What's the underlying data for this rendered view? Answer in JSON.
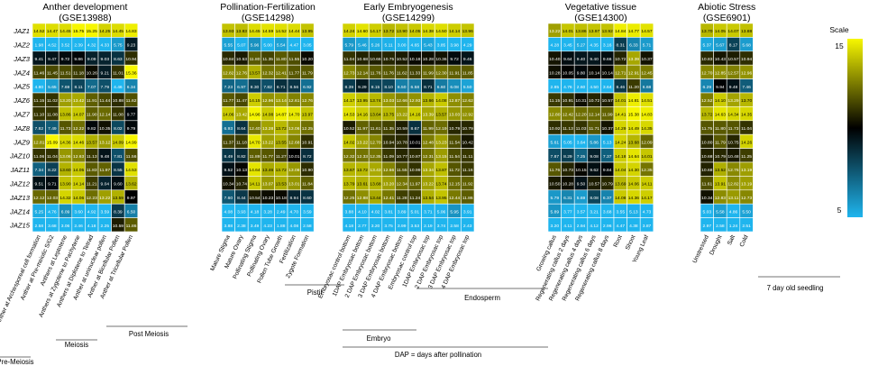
{
  "chart_data": {
    "type": "heatmap",
    "genes": [
      "JAZ1",
      "JAZ2",
      "JAZ3",
      "JAZ4",
      "JAZ5",
      "JAZ6",
      "JAZ7",
      "JAZ8",
      "JAZ9",
      "JAZ10",
      "JAZ11",
      "JAZ12",
      "JAZ13",
      "JAZ14",
      "JAZ15"
    ],
    "scale": {
      "label": "Scale",
      "min": 5,
      "max": 15,
      "min_label": "5",
      "max_label": "15",
      "colors": [
        "#1fb5ee",
        "#000000",
        "#f7f700"
      ]
    },
    "panels": [
      {
        "title": "Anther development",
        "subtitle": "(GSE13988)",
        "columns": [
          "Anther at Archesporeal cell formation",
          "Anther at Pre-meiotic S/G2",
          "Anthers at Leptotene",
          "Anthers at Zygotene to Pachytene",
          "Anthers at Diplotene to Tetrad",
          "Anther at uninuclear pollen",
          "Anther at Bicellular Pollen",
          "Anther at Tricellular Pollen"
        ],
        "values": [
          [
            14.52,
            14.47,
            14.45,
            15.75,
            15.25,
            14.25,
            14.45,
            14.83
          ],
          [
            1.98,
            4.52,
            3.52,
            2.39,
            4.32,
            4.33,
            5.75,
            9.23
          ],
          [
            9.41,
            9.47,
            9.72,
            9.86,
            9.09,
            9.03,
            8.63,
            10.94
          ],
          [
            11.46,
            11.45,
            11.51,
            11.18,
            10.26,
            9.21,
            11.01,
            15.36
          ],
          [
            4.8,
            5.65,
            7.69,
            8.11,
            7.07,
            7.79,
            4.46,
            6.34
          ],
          [
            11.15,
            11.02,
            13.2,
            13.42,
            11.91,
            11.44,
            10.88,
            11.62
          ],
          [
            11.1,
            11.08,
            13.86,
            14.07,
            11.9,
            12.14,
            11.08,
            9.77
          ],
          [
            7.82,
            7.49,
            11.73,
            12.22,
            9.82,
            10.35,
            8.02,
            9.79
          ],
          [
            12.81,
            15.09,
            14.36,
            14.46,
            13.57,
            13.12,
            14.09,
            14.99
          ],
          [
            11.06,
            11.04,
            13.06,
            12.63,
            11.13,
            9.48,
            7.81,
            11.56
          ],
          [
            7.34,
            8.22,
            13.6,
            14.05,
            11.83,
            11.97,
            8.55,
            14.53
          ],
          [
            9.51,
            9.71,
            13.9,
            14.14,
            11.21,
            9.04,
            9.6,
            13.62
          ],
          [
            12.12,
            12.03,
            14.32,
            14.06,
            12.23,
            13.22,
            13.59,
            9.97
          ],
          [
            5.25,
            4.76,
            6.09,
            3.6,
            4.92,
            3.59,
            8.39,
            6.5
          ],
          [
            2.58,
            3.68,
            3.06,
            2.46,
            4.18,
            2.25,
            10.59,
            11.86
          ]
        ],
        "groups": [
          {
            "label": "Pre-Meiosis"
          },
          {
            "label": "Meiosis"
          },
          {
            "label": "Post Meiosis"
          }
        ]
      },
      {
        "title": "Pollination-Fertilization",
        "subtitle": "(GSE14298)",
        "columns": [
          "Mature Stigma",
          "Mature Ovary",
          "Pollinating Stigma",
          "Pollinating Ovary",
          "Pollen Tube Growth",
          "Fertilization",
          "Zygote Formation"
        ],
        "values": [
          [
            13.93,
            13.83,
            14.45,
            14.59,
            14.52,
            14.44,
            13.95
          ],
          [
            5.55,
            5.07,
            5.96,
            5.0,
            5.54,
            4.47,
            3.05
          ],
          [
            10.84,
            10.53,
            11.8,
            11.35,
            11.8,
            11.55,
            10.2
          ],
          [
            12.82,
            12.76,
            13.57,
            12.32,
            12.41,
            11.77,
            11.79
          ],
          [
            7.23,
            6.97,
            8.3,
            7.82,
            8.71,
            8.56,
            6.92
          ],
          [
            11.77,
            11.47,
            14.15,
            12.96,
            13.14,
            12.61,
            12.76
          ],
          [
            14.06,
            13.42,
            14.96,
            14.08,
            14.87,
            14.7,
            13.97
          ],
          [
            6.93,
            8.64,
            12.4,
            13.28,
            13.72,
            13.06,
            12.25
          ],
          [
            11.37,
            11.18,
            14.7,
            13.22,
            13.55,
            12.68,
            10.91
          ],
          [
            8.49,
            8.82,
            11.89,
            11.77,
            11.27,
            10.01,
            8.72
          ],
          [
            9.52,
            10.13,
            14.64,
            13.46,
            13.72,
            13.08,
            10.9
          ],
          [
            10.34,
            10.74,
            14.11,
            13.07,
            13.53,
            13.01,
            11.84
          ],
          [
            7.6,
            8.44,
            10.54,
            10.23,
            10.18,
            8.94,
            8.6
          ],
          [
            4.08,
            3.93,
            4.18,
            3.28,
            2.49,
            4.7,
            3.59
          ],
          [
            3.88,
            2.38,
            3.49,
            4.23,
            1.88,
            4.08,
            2.58
          ]
        ],
        "groups": [
          {
            "label": "Pistil"
          }
        ]
      },
      {
        "title": "Early Embryogenesis",
        "subtitle": "(GSE14299)",
        "columns": [
          "Embryosac control bottom",
          "1DAP Embryosac bottom",
          "2 DAP Embryosac bottom",
          "3 DAP Embryosac bottom",
          "4 DAP Embryosac bottom",
          "Embryosac control top",
          "1DAP Embryosac top",
          "2 DAP Embryosac top",
          "3 DAP Embryosac top",
          "4 DAP Embryosac top"
        ],
        "values": [
          [
            14.24,
            14.6,
            14.17,
            13.72,
            13.9,
            14.05,
            14.38,
            14.5,
            14.14,
            13.96
          ],
          [
            5.79,
            5.46,
            5.26,
            5.11,
            3.0,
            4.65,
            5.43,
            3.85,
            3.98,
            4.29
          ],
          [
            11.04,
            10.68,
            10.66,
            10.75,
            10.52,
            10.18,
            10.28,
            10.36,
            9.72,
            9.46
          ],
          [
            12.73,
            12.14,
            11.76,
            11.76,
            11.62,
            11.33,
            11.99,
            12.3,
            11.91,
            11.85
          ],
          [
            8.39,
            9.29,
            8.15,
            8.1,
            6.5,
            6.58,
            8.71,
            6.6,
            6.08,
            5.5
          ],
          [
            14.17,
            13.95,
            13.74,
            13.03,
            12.66,
            12.93,
            13.66,
            14.08,
            12.87,
            12.62
          ],
          [
            14.53,
            14.16,
            13.64,
            13.75,
            13.22,
            14.16,
            13.39,
            13.57,
            13.03,
            12.92
          ],
          [
            10.52,
            11.97,
            11.61,
            11.35,
            10.59,
            8.67,
            11.99,
            12.19,
            10.79,
            10.79
          ],
          [
            14.02,
            13.22,
            12.7,
            10.94,
            10.78,
            10.01,
            12.48,
            13.23,
            11.54,
            10.42
          ],
          [
            12.32,
            12.33,
            12.35,
            11.09,
            10.77,
            10.87,
            12.31,
            13.15,
            11.54,
            11.11
          ],
          [
            13.67,
            13.72,
            13.43,
            12.66,
            11.55,
            10.99,
            13.34,
            13.87,
            11.72,
            11.16
          ],
          [
            13.79,
            13.61,
            13.68,
            13.2,
            12.34,
            11.97,
            13.22,
            13.74,
            12.15,
            11.92
          ],
          [
            12.25,
            12.88,
            13.44,
            12.41,
            11.28,
            11.24,
            13.54,
            13.95,
            12.44,
            11.86
          ],
          [
            3.88,
            4.1,
            4.02,
            3.81,
            3.89,
            5.01,
            3.71,
            5.06,
            5.95,
            3.91
          ],
          [
            4.18,
            2.77,
            3.2,
            3.75,
            3.99,
            3.53,
            2.19,
            3.74,
            2.58,
            2.43
          ]
        ],
        "groups": [
          {
            "label": "Endosperm"
          },
          {
            "label": "Embryo"
          },
          {
            "label": "DAP = days after pollination"
          }
        ]
      },
      {
        "title": "Vegetative tissue",
        "subtitle": "(GSE14300)",
        "columns": [
          "Growing callus",
          "Regenerating callus 2 days",
          "Regenerating callus 4 days",
          "Regenerating callus 6 days",
          "Regenerating callus 8 days",
          "Root",
          "Shoot",
          "Young Leaf"
        ],
        "values": [
          [
            13.22,
            14.01,
            13.86,
            13.97,
            13.92,
            14.84,
            14.77,
            14.57
          ],
          [
            4.28,
            3.45,
            5.27,
            4.35,
            3.16,
            8.31,
            6.33,
            5.71
          ],
          [
            10.4,
            9.64,
            9.4,
            9.4,
            9.66,
            10.72,
            13.39,
            10.37
          ],
          [
            10.28,
            10.05,
            9.8,
            10.14,
            10.14,
            12.71,
            12.91,
            12.45
          ],
          [
            2.85,
            4.76,
            2.6,
            4.5,
            3.64,
            8.46,
            11.2,
            6.68
          ],
          [
            11.15,
            10.91,
            10.31,
            10.72,
            10.57,
            14.01,
            14.81,
            14.51
          ],
          [
            12.8,
            12.42,
            12.2,
            12.14,
            11.99,
            14.41,
            15.38,
            14.83
          ],
          [
            10.92,
            11.13,
            11.03,
            11.71,
            10.37,
            14.29,
            14.49,
            14.35
          ],
          [
            5.61,
            5.05,
            3.64,
            5.86,
            5.13,
            14.24,
            13.68,
            12.09
          ],
          [
            7.87,
            8.29,
            7.25,
            9.08,
            7.37,
            14.18,
            14.64,
            14.01
          ],
          [
            11.76,
            10.73,
            10.15,
            9.62,
            9.84,
            14.04,
            14.3,
            12.35
          ],
          [
            10.5,
            10.28,
            9.5,
            10.57,
            10.79,
            13.69,
            14.06,
            14.11
          ],
          [
            5.79,
            6.31,
            5.69,
            8.08,
            6.37,
            14.08,
            14.36,
            14.17
          ],
          [
            5.89,
            3.77,
            3.57,
            3.21,
            3.68,
            3.55,
            5.13,
            4.73
          ],
          [
            3.2,
            4.11,
            2.94,
            4.12,
            2.96,
            4.47,
            4.38,
            3.87
          ]
        ],
        "groups": []
      },
      {
        "title": "Abiotic Stress",
        "subtitle": "(GSE6901)",
        "columns": [
          "Unstressed",
          "Drought",
          "Salt",
          "Cold"
        ],
        "values": [
          [
            13.7,
            14.05,
            14.07,
            13.88
          ],
          [
            5.37,
            5.67,
            8.17,
            5.68
          ],
          [
            10.83,
            10.43,
            10.57,
            10.94
          ],
          [
            12.7,
            12.85,
            12.57,
            12.96
          ],
          [
            6.29,
            9.94,
            9.48,
            7.46
          ],
          [
            12.52,
            14.1,
            13.29,
            13.7
          ],
          [
            13.72,
            14.63,
            14.34,
            14.35
          ],
          [
            11.75,
            11.8,
            11.73,
            11.04
          ],
          [
            10.8,
            11.79,
            10.75,
            14.26
          ],
          [
            10.68,
            10.79,
            10.48,
            11.25
          ],
          [
            10.68,
            13.52,
            12.76,
            13.19
          ],
          [
            11.61,
            13.91,
            12.82,
            13.19
          ],
          [
            10.34,
            12.83,
            13.11,
            12.73
          ],
          [
            5.03,
            5.58,
            4.86,
            5.5
          ],
          [
            2.97,
            2.58,
            1.24,
            2.51
          ]
        ],
        "groups": [
          {
            "label": "7 day old seedling"
          }
        ]
      }
    ]
  }
}
